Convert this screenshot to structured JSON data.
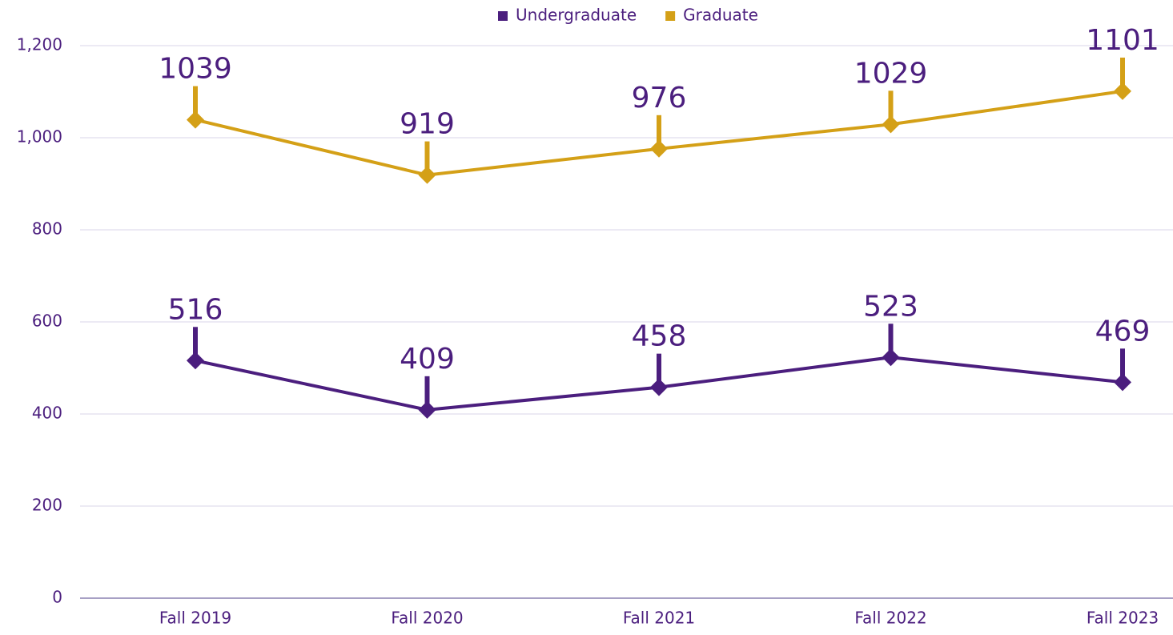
{
  "chart_data": {
    "type": "line",
    "categories": [
      "Fall 2019",
      "Fall 2020",
      "Fall 2021",
      "Fall 2022",
      "Fall 2023"
    ],
    "series": [
      {
        "name": "Undergraduate",
        "color": "#4b1e7e",
        "values": [
          516,
          409,
          458,
          523,
          469
        ]
      },
      {
        "name": "Graduate",
        "color": "#d4a017",
        "values": [
          1039,
          919,
          976,
          1029,
          1101
        ]
      }
    ],
    "ylim": [
      0,
      1200
    ],
    "yticks": [
      0,
      200,
      400,
      600,
      800,
      {
        "value": 1000,
        "label": "1,000"
      },
      {
        "value": 1200,
        "label": "1,200"
      }
    ],
    "grid": true,
    "legend": "top"
  }
}
